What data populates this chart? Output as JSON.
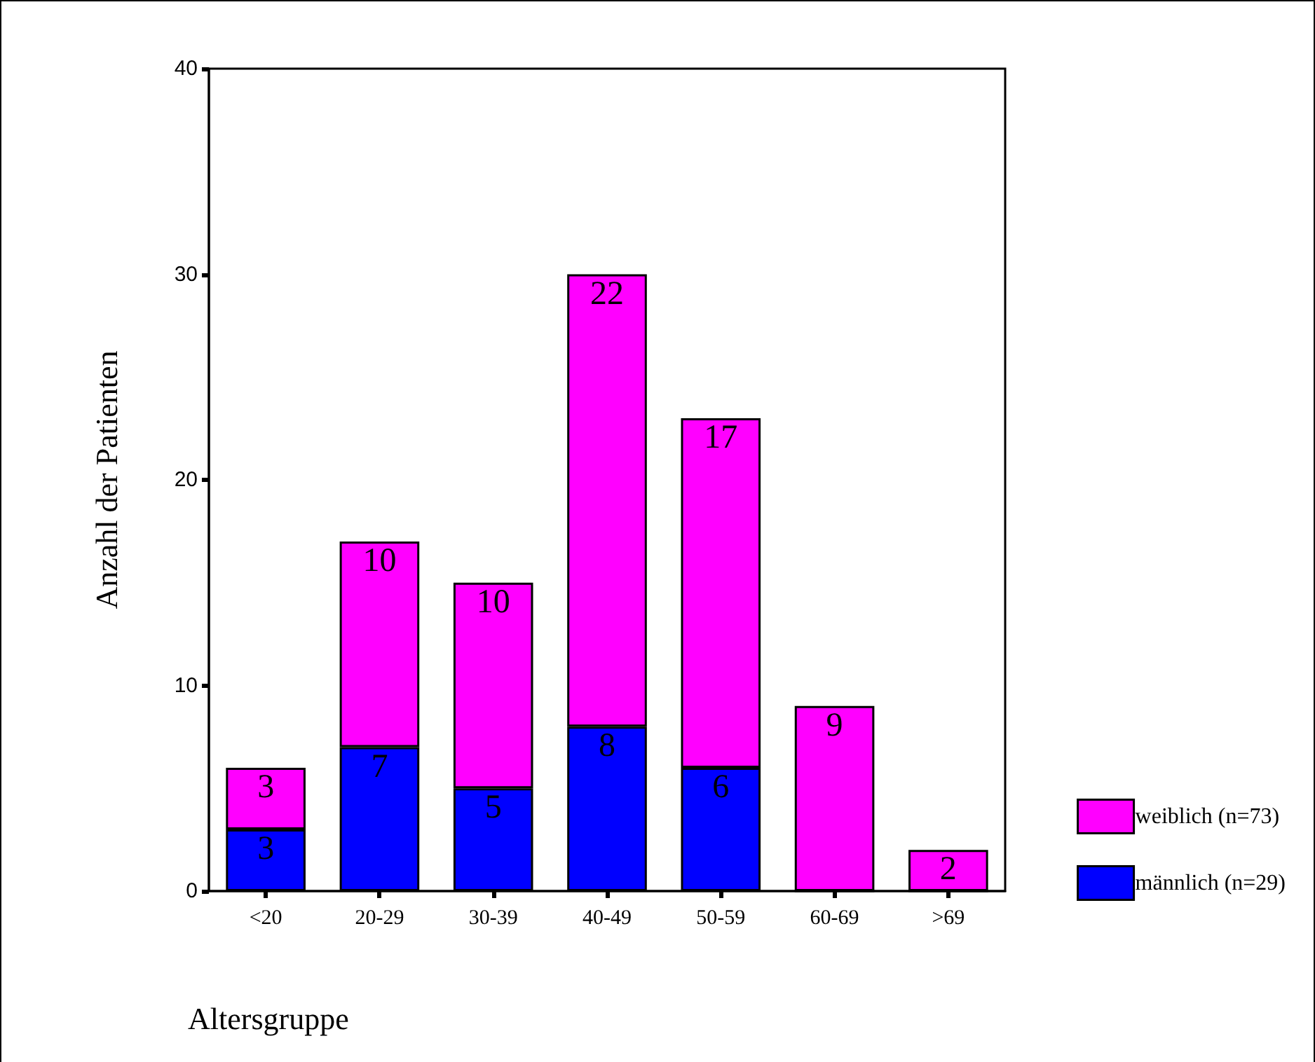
{
  "chart_data": {
    "type": "bar",
    "stacked": true,
    "xlabel": "Altersgruppe",
    "ylabel": "Anzahl der Patienten",
    "categories": [
      "<20",
      "20-29",
      "30-39",
      "40-49",
      "50-59",
      "60-69",
      ">69"
    ],
    "series": [
      {
        "name": "männlich (n=29)",
        "color": "#0000ff",
        "values": [
          3,
          7,
          5,
          8,
          6,
          0,
          0
        ],
        "value_labels": [
          "3",
          "7",
          "5",
          "8",
          "6",
          null,
          null
        ]
      },
      {
        "name": "weiblich (n=73)",
        "color": "#ff00ff",
        "values": [
          3,
          10,
          10,
          22,
          17,
          9,
          2
        ],
        "value_labels": [
          "3",
          "10",
          "10",
          "22",
          "17",
          "9",
          "2"
        ]
      }
    ],
    "ylim": [
      0,
      40
    ],
    "yticks": [
      0,
      10,
      20,
      30,
      40
    ],
    "grid": false,
    "legend": "right"
  }
}
